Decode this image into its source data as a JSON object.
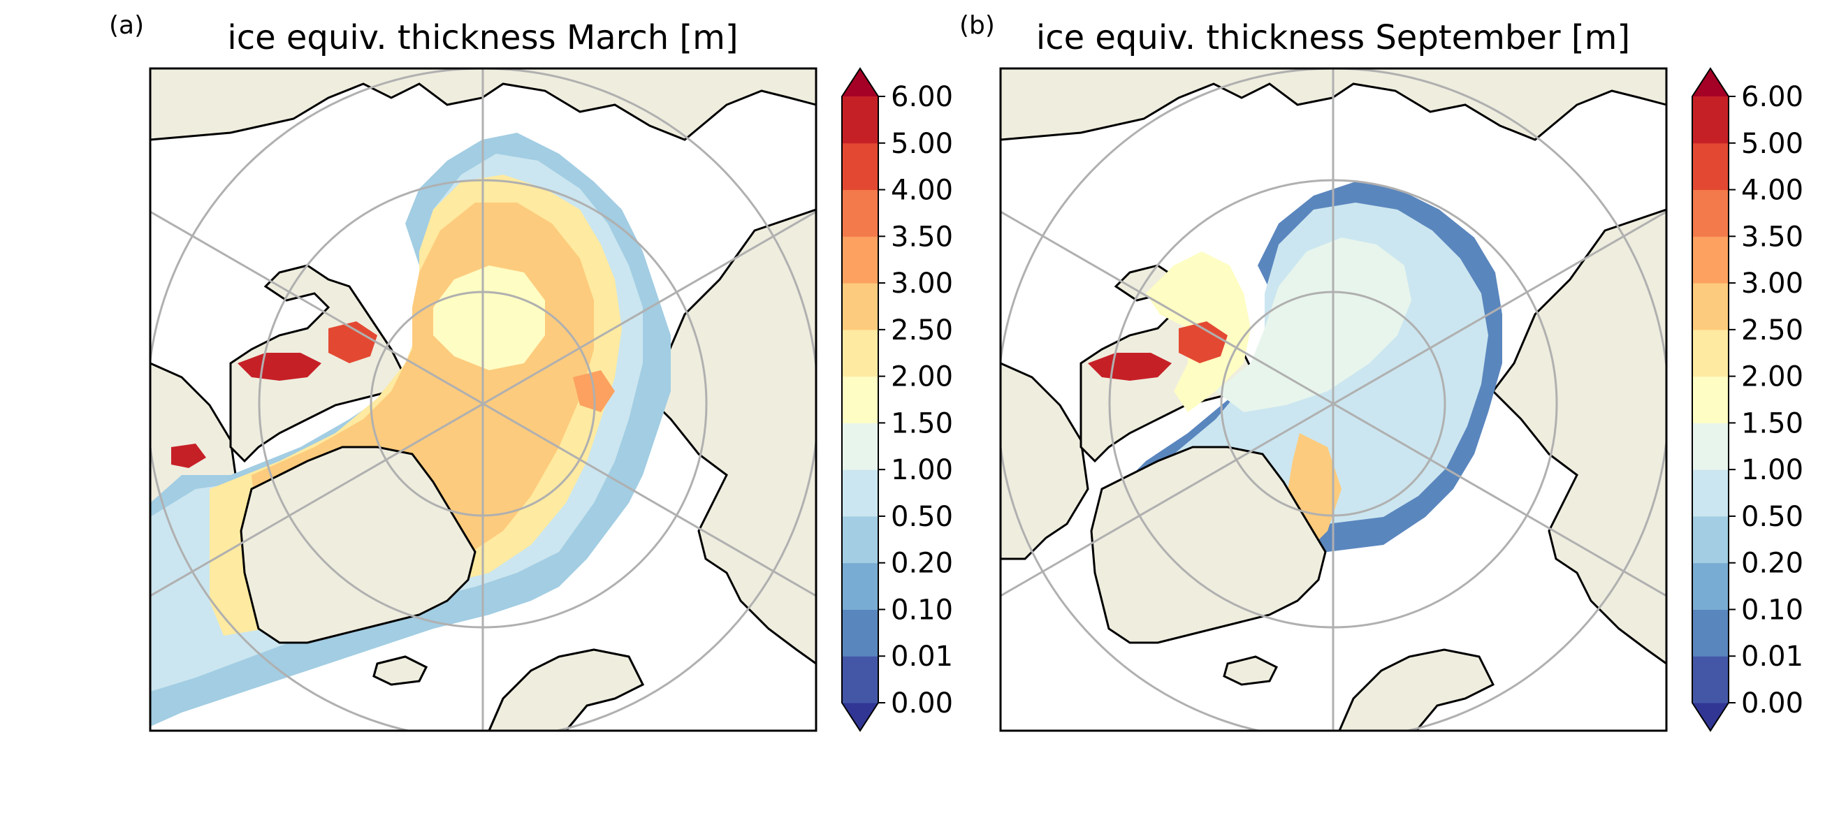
{
  "panels": [
    {
      "letter": "(a)",
      "title": "ice equiv. thickness March [m]",
      "month": "March",
      "field": "ice equiv. thickness",
      "unit": "m",
      "min_value_m": 0.0,
      "max_value_m": 6.0,
      "description_of_pattern": "thick ice north of Canadian Archipelago and Greenland, ~2–3 m over most of central Arctic"
    },
    {
      "letter": "(b)",
      "title": "ice equiv. thickness September [m]",
      "month": "September",
      "field": "ice equiv. thickness",
      "unit": "m",
      "min_value_m": 0.0,
      "max_value_m": 6.0,
      "description_of_pattern": "reduced ice extent, ~0.5–1.5 m over central Arctic, thicker ice near Canadian Archipelago"
    }
  ],
  "colorbar": {
    "levels": [
      "0.00",
      "0.01",
      "0.10",
      "0.20",
      "0.50",
      "1.00",
      "1.50",
      "2.00",
      "2.50",
      "3.00",
      "3.50",
      "4.00",
      "5.00",
      "6.00"
    ],
    "colors": [
      "#4457a7",
      "#5a86be",
      "#79acd2",
      "#a2cde3",
      "#cbe6f0",
      "#e8f5ec",
      "#fefdc3",
      "#feeaa0",
      "#fdcb7d",
      "#fca15f",
      "#f37a4a",
      "#e34932",
      "#c62027"
    ],
    "under_color": "#313695",
    "over_color": "#a50026",
    "extend": "both"
  },
  "map_colors": {
    "land": "#efedde",
    "ocean": "#ffffff",
    "coastline": "#000000",
    "graticule": "#b0b0b0"
  }
}
